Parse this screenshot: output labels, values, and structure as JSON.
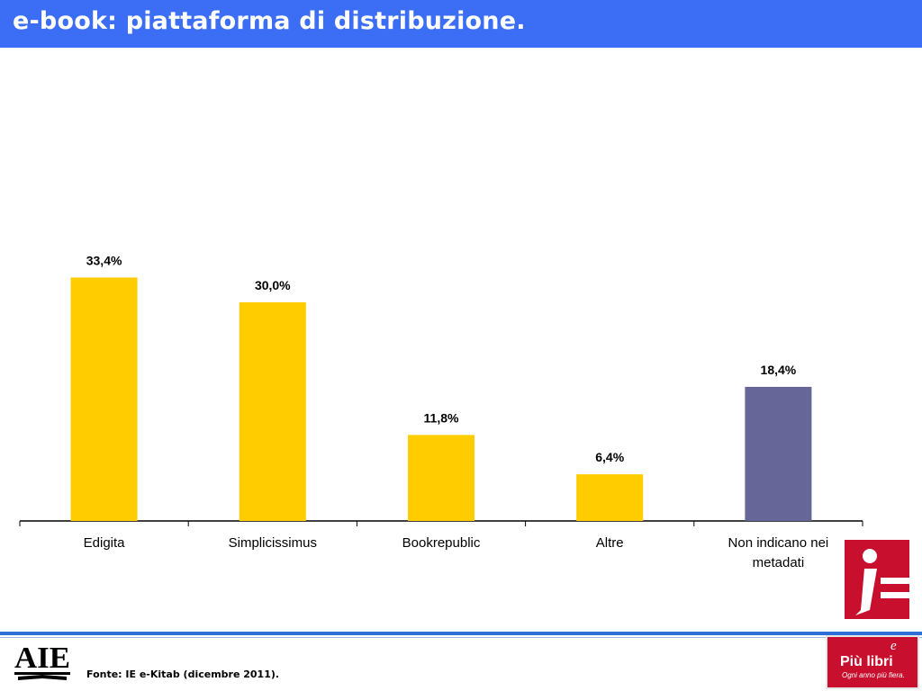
{
  "header": {
    "title": "e-book: piattaforma di distribuzione."
  },
  "chart_data": {
    "type": "bar",
    "categories": [
      "Edigita",
      "Simplicissimus",
      "Bookrepublic",
      "Altre",
      "Non indicano nei metadati"
    ],
    "category_lines": [
      [
        "Edigita"
      ],
      [
        "Simplicissimus"
      ],
      [
        "Bookrepublic"
      ],
      [
        "Altre"
      ],
      [
        "Non indicano nei",
        "metadati"
      ]
    ],
    "values": [
      33.4,
      30.0,
      11.8,
      6.4,
      18.4
    ],
    "data_labels": [
      "33,4%",
      "30,0%",
      "11,8%",
      "6,4%",
      "18,4%"
    ],
    "bar_colors": [
      "#ffcc00",
      "#ffcc00",
      "#ffcc00",
      "#ffcc00",
      "#666699"
    ],
    "ylim": [
      0,
      50
    ],
    "title": "",
    "xlabel": "",
    "ylabel": "",
    "grid": false,
    "legend": "none"
  },
  "footer": {
    "source": "Fonte: IE e-Kitab (dicembre 2011)."
  },
  "logos": {
    "ie": "AIE",
    "piu_libri": {
      "name": "Più libri",
      "mark": "e",
      "tagline": "Ogni anno più fiera."
    }
  },
  "colors": {
    "title_bar": "#3b6ef5",
    "brand_red": "#c8102e",
    "bar_main": "#ffcc00",
    "bar_other": "#666699"
  }
}
